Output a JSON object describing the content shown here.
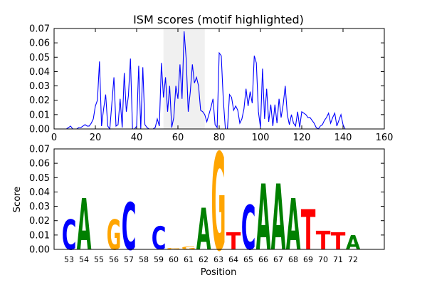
{
  "chart_data": [
    {
      "type": "line",
      "title": "ISM scores (motif highlighted)",
      "xlabel": "",
      "ylabel": "",
      "xlim": [
        0,
        160
      ],
      "ylim": [
        0,
        0.07
      ],
      "xticks": [
        "0",
        "20",
        "40",
        "60",
        "80",
        "100",
        "120",
        "140",
        "160"
      ],
      "yticks": [
        "0.00",
        "0.01",
        "0.02",
        "0.03",
        "0.04",
        "0.05",
        "0.06",
        "0.07"
      ],
      "highlight_span": [
        53,
        73
      ],
      "line_color": "#0000ff",
      "highlight_color": "#e6e6e6",
      "grid": false,
      "x": [
        0,
        1,
        2,
        3,
        4,
        5,
        6,
        7,
        8,
        9,
        10,
        11,
        12,
        13,
        14,
        15,
        16,
        17,
        18,
        19,
        20,
        21,
        22,
        23,
        24,
        25,
        26,
        27,
        28,
        29,
        30,
        31,
        32,
        33,
        34,
        35,
        36,
        37,
        38,
        39,
        40,
        41,
        42,
        43,
        44,
        45,
        46,
        47,
        48,
        49,
        50,
        51,
        52,
        53,
        54,
        55,
        56,
        57,
        58,
        59,
        60,
        61,
        62,
        63,
        64,
        65,
        66,
        67,
        68,
        69,
        70,
        71,
        72,
        73,
        74,
        75,
        76,
        77,
        78,
        79,
        80,
        81,
        82,
        83,
        84,
        85,
        86,
        87,
        88,
        89,
        90,
        91,
        92,
        93,
        94,
        95,
        96,
        97,
        98,
        99,
        100,
        101,
        102,
        103,
        104,
        105,
        106,
        107,
        108,
        109,
        110,
        111,
        112,
        113,
        114,
        115,
        116,
        117,
        118,
        119,
        120,
        121,
        122,
        123,
        124,
        125,
        126,
        127,
        128,
        129,
        130,
        131,
        132,
        133,
        134,
        135,
        136,
        137,
        138,
        139,
        140,
        141,
        142,
        143,
        144,
        145
      ],
      "y": [
        0,
        0,
        0,
        0,
        0,
        0,
        0,
        0.001,
        0.002,
        0,
        0,
        0,
        0.001,
        0.001,
        0.002,
        0.003,
        0.002,
        0.002,
        0.004,
        0.007,
        0.016,
        0.02,
        0.047,
        0.002,
        0.014,
        0.024,
        0.002,
        0,
        0.018,
        0.036,
        0.002,
        0.003,
        0.021,
        0.001,
        0.039,
        0.012,
        0.023,
        0.049,
        0,
        0,
        0.002,
        0.044,
        0,
        0.043,
        0.003,
        0.001,
        0,
        0,
        0,
        0.001,
        0.007,
        0.002,
        0.046,
        0.022,
        0.036,
        0.012,
        0.03,
        0.001,
        0.008,
        0.03,
        0.021,
        0.045,
        0.021,
        0.068,
        0.049,
        0.012,
        0.026,
        0.045,
        0.032,
        0.036,
        0.03,
        0.013,
        0.012,
        0.01,
        0.005,
        0.01,
        0.015,
        0.021,
        0.003,
        0.001,
        0.053,
        0.051,
        0.02,
        0,
        0,
        0.024,
        0.022,
        0.013,
        0.016,
        0.013,
        0.004,
        0.007,
        0.014,
        0.028,
        0.016,
        0.026,
        0.018,
        0.051,
        0.046,
        0.012,
        0.001,
        0.042,
        0.007,
        0.028,
        0.005,
        0.017,
        0.002,
        0.017,
        0.004,
        0.021,
        0.008,
        0.017,
        0.03,
        0.01,
        0.003,
        0.01,
        0.004,
        0.002,
        0.012,
        0.001,
        0.012,
        0.011,
        0.01,
        0.008,
        0.008,
        0.006,
        0.004,
        0.001,
        0,
        0.002,
        0.003,
        0.006,
        0.008,
        0.011,
        0.004,
        0.008,
        0.011,
        0.002,
        0.006,
        0.01,
        0.003,
        0,
        0,
        0,
        0,
        0
      ]
    },
    {
      "type": "bar",
      "subtype": "sequence-logo",
      "title": "",
      "xlabel": "Position",
      "ylabel": "Score",
      "ylim": [
        0,
        0.07
      ],
      "yticks": [
        "0.00",
        "0.01",
        "0.02",
        "0.03",
        "0.04",
        "0.05",
        "0.06",
        "0.07"
      ],
      "categories": [
        "53",
        "54",
        "55",
        "56",
        "57",
        "58",
        "59",
        "60",
        "61",
        "62",
        "63",
        "64",
        "65",
        "66",
        "67",
        "68",
        "69",
        "70",
        "71",
        "72"
      ],
      "letters": [
        "C",
        "A",
        "",
        "G",
        "C",
        "",
        "C",
        "G",
        "G",
        "A",
        "G",
        "T",
        "C",
        "A",
        "A",
        "A",
        "T",
        "T",
        "T",
        "A"
      ],
      "values": [
        0.021,
        0.036,
        0,
        0.021,
        0.033,
        0,
        0.016,
        0.001,
        0.002,
        0.029,
        0.068,
        0.012,
        0.031,
        0.046,
        0.046,
        0.036,
        0.028,
        0.013,
        0.012,
        0.01
      ],
      "letter_colors": {
        "A": "#008000",
        "C": "#0000ff",
        "G": "#ffa500",
        "T": "#ff0000"
      }
    }
  ]
}
